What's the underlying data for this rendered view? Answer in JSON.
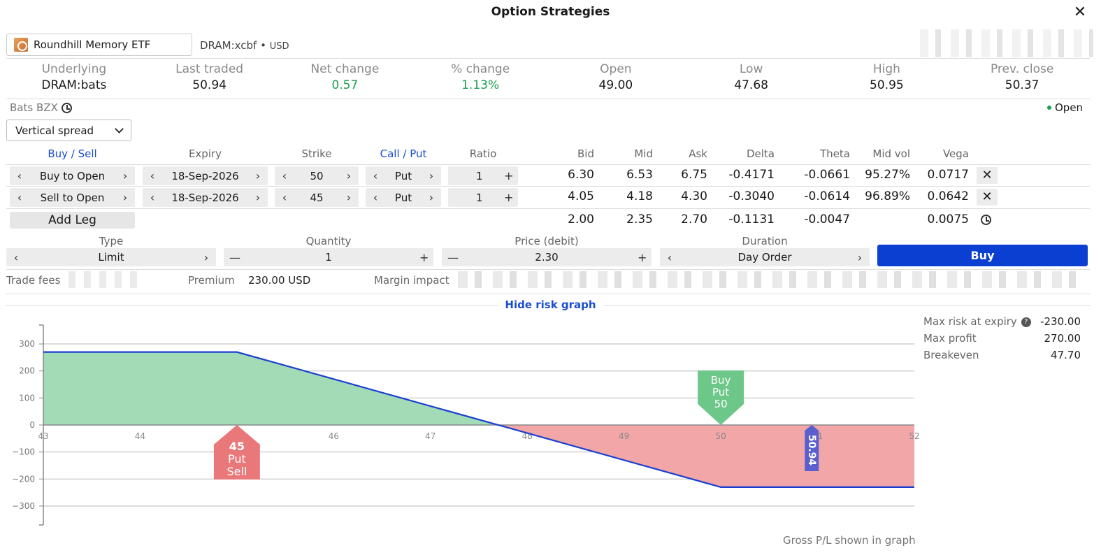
{
  "window": {
    "title": "Option Strategies"
  },
  "symbol": {
    "name": "Roundhill Memory ETF",
    "code": "DRAM:xcbf",
    "currency": "USD"
  },
  "quote": [
    {
      "label": "Underlying",
      "value": "DRAM:bats",
      "color": ""
    },
    {
      "label": "Last traded",
      "value": "50.94",
      "color": ""
    },
    {
      "label": "Net change",
      "value": "0.57",
      "color": "green"
    },
    {
      "label": "% change",
      "value": "1.13%",
      "color": "green"
    },
    {
      "label": "Open",
      "value": "49.00",
      "color": ""
    },
    {
      "label": "Low",
      "value": "47.68",
      "color": ""
    },
    {
      "label": "High",
      "value": "50.95",
      "color": ""
    },
    {
      "label": "Prev. close",
      "value": "50.37",
      "color": ""
    }
  ],
  "exchange": "Bats BZX",
  "market_status": "Open",
  "strategy": "Vertical spread",
  "legs_header": {
    "buy_sell": "Buy / Sell",
    "expiry": "Expiry",
    "strike": "Strike",
    "call_put": "Call / Put",
    "ratio": "Ratio",
    "bid": "Bid",
    "mid": "Mid",
    "ask": "Ask",
    "delta": "Delta",
    "theta": "Theta",
    "mid_vol": "Mid vol",
    "vega": "Vega"
  },
  "legs": [
    {
      "action": "Buy to Open",
      "expiry": "18-Sep-2026",
      "strike": "50",
      "type": "Put",
      "ratio": "1",
      "bid": "6.30",
      "mid": "6.53",
      "ask": "6.75",
      "delta": "-0.4171",
      "theta": "-0.0661",
      "mid_vol": "95.27%",
      "vega": "0.0717"
    },
    {
      "action": "Sell to Open",
      "expiry": "18-Sep-2026",
      "strike": "45",
      "type": "Put",
      "ratio": "1",
      "bid": "4.05",
      "mid": "4.18",
      "ask": "4.30",
      "delta": "-0.3040",
      "theta": "-0.0614",
      "mid_vol": "96.89%",
      "vega": "0.0642"
    }
  ],
  "totals": {
    "bid": "2.00",
    "mid": "2.35",
    "ask": "2.70",
    "delta": "-0.1131",
    "theta": "-0.0047",
    "vega": "0.0075"
  },
  "add_leg_label": "Add Leg",
  "order": {
    "type_label": "Type",
    "type": "Limit",
    "quantity_label": "Quantity",
    "quantity": "1",
    "price_label": "Price (debit)",
    "price": "2.30",
    "duration_label": "Duration",
    "duration": "Day Order",
    "buy_label": "Buy"
  },
  "fees": {
    "trade_fees_label": "Trade fees",
    "premium_label": "Premium",
    "premium": "230.00 USD",
    "margin_label": "Margin impact"
  },
  "risk_toggle": "Hide risk graph",
  "risk_stats": [
    {
      "label": "Max risk at expiry",
      "value": "-230.00",
      "help": true
    },
    {
      "label": "Max profit",
      "value": "270.00",
      "help": false
    },
    {
      "label": "Breakeven",
      "value": "47.70",
      "help": false
    }
  ],
  "gross_note": "Gross P/L shown in graph",
  "chart_data": {
    "type": "line",
    "x": [
      43,
      45,
      50,
      52
    ],
    "y": [
      270,
      270,
      -230,
      -230
    ],
    "xlim": [
      43,
      52
    ],
    "ylim": [
      -370,
      370
    ],
    "xticks": [
      43,
      44,
      45,
      46,
      47,
      48,
      49,
      50,
      51,
      52
    ],
    "yticks": [
      300,
      200,
      100,
      0,
      -100,
      -200,
      -300
    ],
    "breakeven": 47.7,
    "markers": [
      {
        "x": 45,
        "lines": [
          "45",
          "Put",
          "Sell"
        ],
        "color": "#e8787a",
        "side": "below"
      },
      {
        "x": 50,
        "lines": [
          "Buy",
          "Put",
          "50"
        ],
        "color": "#6cc788",
        "side": "above"
      },
      {
        "x": 50.94,
        "lines": [
          "50.94"
        ],
        "color": "#5a5fcf",
        "side": "price"
      }
    ],
    "colors": {
      "profit": "#a3dbb7",
      "loss": "#f2a6a8",
      "line": "#1a3fd1"
    }
  }
}
